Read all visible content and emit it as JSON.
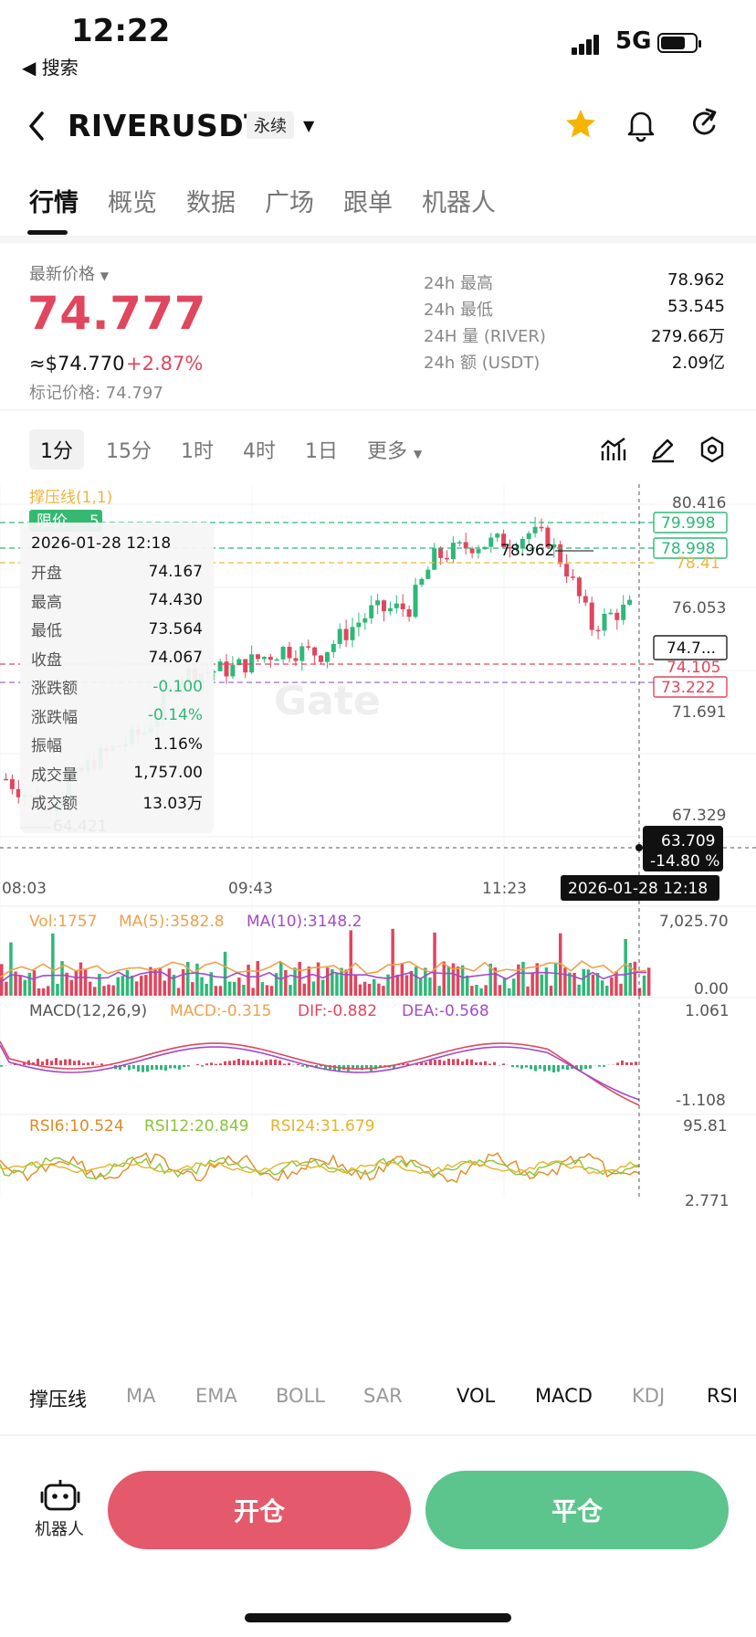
{
  "status": {
    "time": "12:22",
    "back_app": "◀ 搜索",
    "network": "5G"
  },
  "header": {
    "symbol": "RIVERUSDT",
    "contract_type": "永续"
  },
  "tabs": [
    "行情",
    "概览",
    "数据",
    "广场",
    "跟单",
    "机器人"
  ],
  "price": {
    "label": "最新价格",
    "last": "74.777",
    "usd": "≈$74.770",
    "change": "+2.87%",
    "mark": "标记价格: 74.797"
  },
  "stats": [
    {
      "k": "24h  最高",
      "v": "78.962"
    },
    {
      "k": "24h  最低",
      "v": "53.545"
    },
    {
      "k": "24H  量 (RIVER)",
      "v": "279.66万"
    },
    {
      "k": "24h  额 (USDT)",
      "v": "2.09亿"
    }
  ],
  "intervals": [
    "1分",
    "15分",
    "1时",
    "4时",
    "1日",
    "更多"
  ],
  "chart_overlay": {
    "sr_label": "撑压线(1,1)",
    "limit_label": "限价",
    "limit_count": "5",
    "axis_labels": [
      "80.416",
      "76.053",
      "71.691",
      "67.329"
    ],
    "price_tags": [
      "79.998",
      "78.998",
      "78.41",
      "74.7...",
      "74.105",
      "73.222"
    ],
    "high_marker": "78.962",
    "low_marker": "64.421",
    "crosshair_price": "63.709",
    "crosshair_pct": "-14.80 %",
    "crosshair_time": "2026-01-28 12:18",
    "x_labels": [
      "08:03",
      "09:43",
      "11:23"
    ],
    "watermark": "Gate"
  },
  "ohlc": {
    "date": "2026-01-28 12:18",
    "rows": [
      {
        "k": "开盘",
        "v": "74.167",
        "c": "#111111"
      },
      {
        "k": "最高",
        "v": "74.430",
        "c": "#111111"
      },
      {
        "k": "最低",
        "v": "73.564",
        "c": "#111111"
      },
      {
        "k": "收盘",
        "v": "74.067",
        "c": "#111111"
      },
      {
        "k": "涨跌额",
        "v": "-0.100",
        "c": "#2eb879"
      },
      {
        "k": "涨跌幅",
        "v": "-0.14%",
        "c": "#2eb879"
      },
      {
        "k": "振幅",
        "v": "1.16%",
        "c": "#111111"
      },
      {
        "k": "成交量",
        "v": "1,757.00",
        "c": "#111111"
      },
      {
        "k": "成交额",
        "v": "13.03万",
        "c": "#111111"
      }
    ]
  },
  "vol": {
    "vol": "Vol:1757",
    "ma5": "MA(5):3582.8",
    "ma10": "MA(10):3148.2",
    "max": "7,025.70",
    "min": "0.00"
  },
  "macd": {
    "title": "MACD(12,26,9)",
    "macd": "MACD:-0.315",
    "dif": "DIF:-0.882",
    "dea": "DEA:-0.568",
    "max": "1.061",
    "min": "-1.108"
  },
  "rsi": {
    "r6": "RSI6:10.524",
    "r12": "RSI12:20.849",
    "r24": "RSI24:31.679",
    "max": "95.81",
    "min": "2.771"
  },
  "indicator_tabs": [
    "撑压线",
    "MA",
    "EMA",
    "BOLL",
    "SAR",
    "VOL",
    "MACD",
    "KDJ",
    "RSI"
  ],
  "bottom": {
    "robot": "机器人",
    "open": "开仓",
    "close": "平仓"
  },
  "colors": {
    "up": "#2eb879",
    "down": "#e0465e",
    "open_btn": "#e4596b",
    "close_btn": "#5cc48d"
  }
}
